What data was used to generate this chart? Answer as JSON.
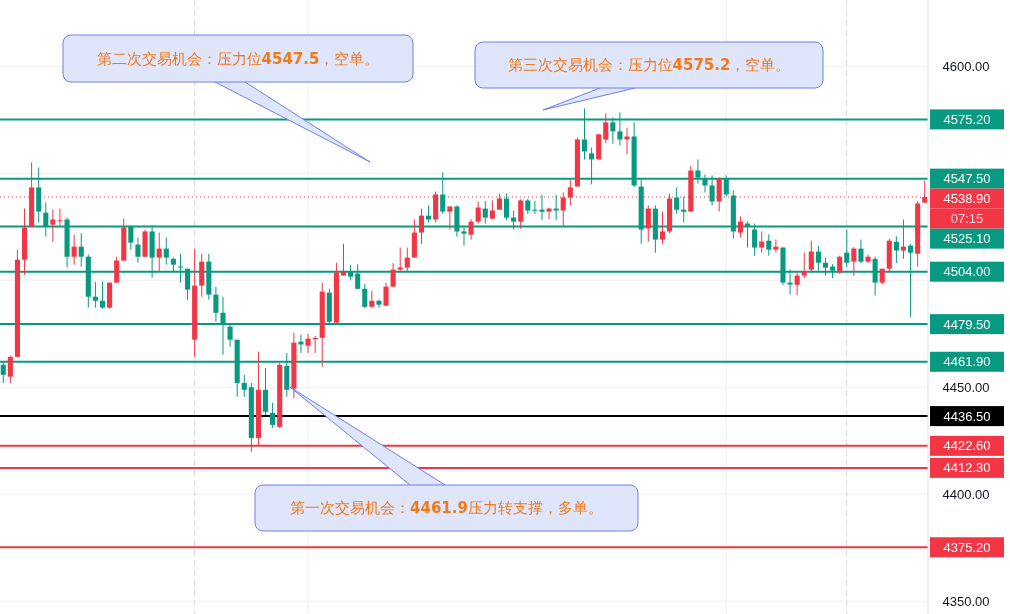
{
  "chart_data": {
    "type": "candlestick",
    "categories": [
      null,
      null,
      null,
      null,
      null,
      null,
      null,
      null,
      null,
      null,
      null,
      null,
      null,
      null,
      null,
      null,
      null,
      null,
      null,
      null,
      null,
      null,
      null,
      null,
      null,
      null,
      null,
      null,
      null,
      null,
      null,
      null,
      null,
      null,
      null,
      null,
      null,
      null,
      null,
      null,
      null,
      null,
      null,
      null,
      null,
      null,
      null,
      null,
      null,
      null,
      null,
      null,
      null,
      null,
      null,
      null,
      null,
      null,
      null,
      null,
      null,
      null,
      null,
      null,
      null,
      null,
      null,
      null,
      null,
      null,
      null,
      null,
      null,
      null,
      null,
      null,
      null,
      null,
      null,
      null,
      null,
      null,
      null,
      null,
      null,
      null,
      null,
      null,
      null,
      null,
      null,
      null,
      null,
      null,
      null,
      null,
      null,
      null,
      null,
      null,
      null,
      null,
      null,
      null,
      null,
      null,
      null,
      null,
      null,
      null,
      null,
      null,
      null,
      null,
      null,
      null,
      null,
      null,
      null,
      null,
      null,
      null,
      null,
      null,
      null,
      null,
      null,
      null,
      null,
      null,
      null
    ],
    "ohlc": [
      [
        4460.5,
        4461.5,
        4452,
        4455.8
      ],
      [
        4454.9,
        4464.8,
        4452,
        4464.2
      ],
      [
        4464.2,
        4514.3,
        4464.2,
        4509.6
      ],
      [
        4509.6,
        4533.5,
        4502.6,
        4524.6
      ],
      [
        4525,
        4555.1,
        4525,
        4543.4
      ],
      [
        4543.4,
        4552.7,
        4527,
        4532.1
      ],
      [
        4531.6,
        4536.3,
        4520.4,
        4525
      ],
      [
        4526,
        4533,
        4518,
        4528.4
      ],
      [
        4527.8,
        4533.5,
        4525.6,
        4528
      ],
      [
        4528.4,
        4529.3,
        4506,
        4511
      ],
      [
        4511,
        4521.3,
        4507.3,
        4515.7
      ],
      [
        4515.7,
        4522,
        4506.4,
        4511
      ],
      [
        4511,
        4512,
        4487.2,
        4492.3
      ],
      [
        4492.3,
        4499.3,
        4487.2,
        4490.4
      ],
      [
        4490.4,
        4499.3,
        4486.7,
        4487.2
      ],
      [
        4487.2,
        4498.9,
        4486.7,
        4498.9
      ],
      [
        4498.9,
        4511,
        4498.9,
        4509.2
      ],
      [
        4509.2,
        4528.8,
        4509.2,
        4524.6
      ],
      [
        4525.1,
        4525.6,
        4514.3,
        4517.6
      ],
      [
        4516.7,
        4520,
        4508.2,
        4511
      ],
      [
        4511,
        4523.7,
        4511,
        4522.8
      ],
      [
        4522.8,
        4525.6,
        4501.2,
        4510.6
      ],
      [
        4510.6,
        4522.3,
        4504,
        4514.8
      ],
      [
        4514.8,
        4520,
        4507.3,
        4510.6
      ],
      [
        4510,
        4510.6,
        4504,
        4507.3
      ],
      [
        4506.4,
        4512.4,
        4498.9,
        4506
      ],
      [
        4505.4,
        4505.4,
        4490.9,
        4495.6
      ],
      [
        4472.2,
        4514.8,
        4464.2,
        4497.5
      ],
      [
        4497.5,
        4512.4,
        4492.3,
        4508.7
      ],
      [
        4508.7,
        4512.4,
        4490.9,
        4493.3
      ],
      [
        4493.3,
        4497,
        4480.6,
        4484.8
      ],
      [
        4484.8,
        4492.3,
        4465.2,
        4479.2
      ],
      [
        4478.3,
        4480,
        4469,
        4472.2
      ],
      [
        4472.2,
        4472.2,
        4445.5,
        4452
      ],
      [
        4452,
        4455.8,
        4445.5,
        4448.8
      ],
      [
        4450,
        4452,
        4419.8,
        4426.3
      ],
      [
        4426.3,
        4466.6,
        4423,
        4448.8
      ],
      [
        4448.8,
        4459,
        4437,
        4438.5
      ],
      [
        4438,
        4442.7,
        4431,
        4432.4
      ],
      [
        4431.5,
        4461.4,
        4431,
        4460.5
      ],
      [
        4460,
        4466,
        4445.5,
        4448.8
      ],
      [
        4449.3,
        4475.5,
        4445,
        4470.8
      ],
      [
        4471.3,
        4474.6,
        4466,
        4470
      ],
      [
        4469.4,
        4475,
        4466,
        4472.7
      ],
      [
        4472.5,
        4474,
        4466,
        4473
      ],
      [
        4473.1,
        4498.9,
        4459.6,
        4494.7
      ],
      [
        4494.2,
        4496,
        4480,
        4480.6
      ],
      [
        4480.2,
        4508.2,
        4480.2,
        4503.6
      ],
      [
        4502.2,
        4517.1,
        4502.2,
        4504.1
      ],
      [
        4504.1,
        4507,
        4500,
        4501.7
      ],
      [
        4503.1,
        4507.5,
        4496,
        4496
      ],
      [
        4496,
        4498.4,
        4487,
        4487.6
      ],
      [
        4487.6,
        4495.1,
        4487,
        4490.4
      ],
      [
        4490.4,
        4491,
        4487.2,
        4488.6
      ],
      [
        4488.1,
        4498.9,
        4488.1,
        4497
      ],
      [
        4497,
        4508,
        4497,
        4505
      ],
      [
        4505,
        4515.3,
        4504,
        4506
      ],
      [
        4505.9,
        4515.3,
        4504,
        4510.6
      ],
      [
        4510.6,
        4528.4,
        4510.6,
        4522.3
      ],
      [
        4522.3,
        4533.5,
        4517,
        4530.2
      ],
      [
        4530.2,
        4535,
        4527,
        4528.4
      ],
      [
        4528.4,
        4541.5,
        4527,
        4540.1
      ],
      [
        4540.1,
        4550.4,
        4531,
        4532.1
      ],
      [
        4532.1,
        4534.5,
        4523.7,
        4534.5
      ],
      [
        4534.5,
        4535,
        4520.4,
        4522.8
      ],
      [
        4522.8,
        4525,
        4516.2,
        4521.8
      ],
      [
        4521.3,
        4528.5,
        4519,
        4527.4
      ],
      [
        4527.4,
        4536.8,
        4526.5,
        4534
      ],
      [
        4533.5,
        4537,
        4526.5,
        4529.3
      ],
      [
        4528.8,
        4537.3,
        4528.8,
        4532.6
      ],
      [
        4533,
        4540.5,
        4533,
        4538.2
      ],
      [
        4538.2,
        4540.5,
        4528,
        4529.3
      ],
      [
        4529.3,
        4532.6,
        4523.7,
        4527.4
      ],
      [
        4527.4,
        4537.8,
        4524,
        4537.3
      ],
      [
        4537.3,
        4538,
        4531,
        4532.6
      ],
      [
        4533,
        4537,
        4531,
        4532.6
      ],
      [
        4533,
        4540,
        4528,
        4532
      ],
      [
        4532.1,
        4534,
        4528.5,
        4533.5
      ],
      [
        4533.5,
        4540,
        4528,
        4532.6
      ],
      [
        4532.6,
        4541,
        4525.6,
        4538.7
      ],
      [
        4538.7,
        4547.1,
        4535,
        4543.4
      ],
      [
        4543.8,
        4566.7,
        4543.8,
        4565.8
      ],
      [
        4565.8,
        4580.3,
        4556.5,
        4560.2
      ],
      [
        4559.3,
        4562,
        4544.8,
        4556.5
      ],
      [
        4556.5,
        4568.2,
        4556.5,
        4568.2
      ],
      [
        4565.8,
        4578,
        4564,
        4573.8
      ],
      [
        4573.8,
        4576.1,
        4563.8,
        4569.6
      ],
      [
        4569.6,
        4578.5,
        4563,
        4565.8
      ],
      [
        4565.8,
        4571.4,
        4558.8,
        4567.2
      ],
      [
        4567.2,
        4573.8,
        4543.4,
        4544.3
      ],
      [
        4543.8,
        4547,
        4517.1,
        4523.7
      ],
      [
        4524.2,
        4535,
        4518,
        4533.5
      ],
      [
        4533.5,
        4535,
        4512.9,
        4519
      ],
      [
        4519,
        4532,
        4517,
        4522.8
      ],
      [
        4522.8,
        4540.5,
        4522,
        4538.2
      ],
      [
        4538.7,
        4543.4,
        4531,
        4533
      ],
      [
        4533,
        4539,
        4527,
        4532
      ],
      [
        4532.1,
        4553.6,
        4532.1,
        4551.3
      ],
      [
        4551.3,
        4556.5,
        4545.2,
        4548
      ],
      [
        4547.6,
        4549.4,
        4541,
        4544.3
      ],
      [
        4544.3,
        4549,
        4535,
        4536.8
      ],
      [
        4536.8,
        4548,
        4532.1,
        4547.6
      ],
      [
        4547.6,
        4549,
        4539,
        4540.1
      ],
      [
        4539.6,
        4542,
        4519.5,
        4522.8
      ],
      [
        4522.3,
        4529.8,
        4520,
        4527.4
      ],
      [
        4526.5,
        4527.5,
        4515.3,
        4525.1
      ],
      [
        4523.7,
        4526.5,
        4511.5,
        4515.3
      ],
      [
        4515.3,
        4522.8,
        4512.9,
        4518.1
      ],
      [
        4518.5,
        4521.5,
        4511.5,
        4514.3
      ],
      [
        4514.3,
        4519,
        4513,
        4515.7
      ],
      [
        4515.3,
        4515.3,
        4497.8,
        4498.9
      ],
      [
        4498.9,
        4505,
        4493.3,
        4498
      ],
      [
        4497.9,
        4504,
        4493,
        4502.2
      ],
      [
        4502.2,
        4512.9,
        4501,
        4504
      ],
      [
        4505,
        4518.5,
        4504,
        4513.4
      ],
      [
        4513.4,
        4516,
        4504.5,
        4508.2
      ],
      [
        4508.2,
        4510.5,
        4502.2,
        4505.9
      ],
      [
        4506.4,
        4507.5,
        4501,
        4504.5
      ],
      [
        4503.6,
        4511.5,
        4503,
        4511
      ],
      [
        4512.9,
        4523.7,
        4506,
        4508.2
      ],
      [
        4508.7,
        4515.5,
        4502,
        4514.8
      ],
      [
        4514.8,
        4519,
        4508,
        4508.7
      ],
      [
        4508.7,
        4512,
        4508,
        4511
      ],
      [
        4510,
        4511,
        4492.8,
        4498.9
      ],
      [
        4498.9,
        4505.4,
        4498,
        4505.4
      ],
      [
        4505.4,
        4519.3,
        4504,
        4518.5
      ],
      [
        4518,
        4520.5,
        4508,
        4513.9
      ],
      [
        4513.9,
        4528.4,
        4510,
        4515.7
      ],
      [
        4516.2,
        4517,
        4482.9,
        4512.9
      ],
      [
        4512.4,
        4537,
        4506.4,
        4535.9
      ],
      [
        4536.3,
        4546.6,
        4536,
        4538.9
      ]
    ],
    "ylim": [
      4344,
      4631
    ],
    "yticks": [
      {
        "value": 4350,
        "label": "4350.00"
      },
      {
        "value": 4400,
        "label": "4400.00"
      },
      {
        "value": 4450,
        "label": "4450.00"
      },
      {
        "value": 4500,
        "label": null
      },
      {
        "value": 4550,
        "label": null
      },
      {
        "value": 4600,
        "label": "4600.00"
      }
    ],
    "grid": true,
    "ref_lines": [
      {
        "axis": "y",
        "value": 4575.2,
        "label": "4575.20",
        "color": "#089981"
      },
      {
        "axis": "y",
        "value": 4547.5,
        "label": "4547.50",
        "color": "#089981"
      },
      {
        "axis": "y",
        "value": 4538.9,
        "label": "4538.90",
        "color": "#f23645",
        "line_style": "dotted"
      },
      {
        "axis": "y",
        "value": 4525.1,
        "label": "4525.10",
        "color": "#089981"
      },
      {
        "axis": "y",
        "value": 4504,
        "label": "4504.00",
        "color": "#089981"
      },
      {
        "axis": "y",
        "value": 4479.5,
        "label": "4479.50",
        "color": "#089981"
      },
      {
        "axis": "y",
        "value": 4461.9,
        "label": "4461.90",
        "color": "#089981"
      },
      {
        "axis": "y",
        "value": 4436.5,
        "label": "4436.50",
        "color": "#000000"
      },
      {
        "axis": "y",
        "value": 4422.6,
        "label": "4422.60",
        "color": "#f23645"
      },
      {
        "axis": "y",
        "value": 4412.3,
        "label": "4412.30",
        "color": "#f23645"
      },
      {
        "axis": "y",
        "value": 4375.2,
        "label": "4375.20",
        "color": "#f23645"
      }
    ],
    "annotations": [
      "第二次交易机会：压力位4547.5，空单。",
      "第三次交易机会：压力位4575.2，空单。",
      "第一次交易机会：4461.9压力转支撑，多单。",
      "07:15"
    ]
  }
}
